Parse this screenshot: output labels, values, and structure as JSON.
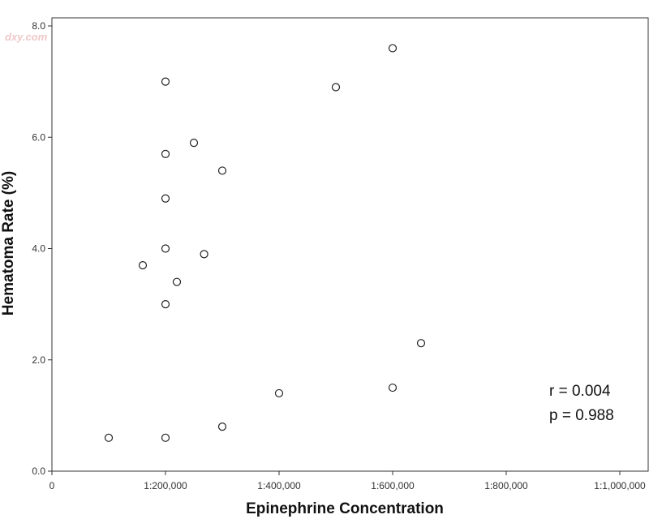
{
  "watermark": "dxy.com",
  "chart_data": {
    "type": "scatter",
    "xlabel": "Epinephrine Concentration",
    "ylabel": "Hematoma Rate (%)",
    "xlim": [
      0,
      1000000
    ],
    "ylim": [
      0,
      8
    ],
    "x_tick_values": [
      0,
      200000,
      400000,
      600000,
      800000,
      1000000
    ],
    "x_tick_labels": [
      "0",
      "1:200,000",
      "1:400,000",
      "1:600,000",
      "1:800,000",
      "1:1,000,000"
    ],
    "y_tick_values": [
      0,
      2,
      4,
      6,
      8
    ],
    "y_tick_labels": [
      "0.0",
      "2.0",
      "4.0",
      "6.0",
      "8.0"
    ],
    "grid": false,
    "points": [
      {
        "x": 100000,
        "y": 0.6
      },
      {
        "x": 160000,
        "y": 3.7
      },
      {
        "x": 200000,
        "y": 7.0
      },
      {
        "x": 200000,
        "y": 5.7
      },
      {
        "x": 200000,
        "y": 4.9
      },
      {
        "x": 200000,
        "y": 4.0
      },
      {
        "x": 200000,
        "y": 3.0
      },
      {
        "x": 200000,
        "y": 0.6
      },
      {
        "x": 220000,
        "y": 3.4
      },
      {
        "x": 250000,
        "y": 5.9
      },
      {
        "x": 268000,
        "y": 3.9
      },
      {
        "x": 300000,
        "y": 5.4
      },
      {
        "x": 300000,
        "y": 0.8
      },
      {
        "x": 400000,
        "y": 1.4
      },
      {
        "x": 500000,
        "y": 6.9
      },
      {
        "x": 600000,
        "y": 7.6
      },
      {
        "x": 600000,
        "y": 1.5
      },
      {
        "x": 650000,
        "y": 2.3
      }
    ],
    "annotations": [
      "r  = 0.004",
      "p = 0.988"
    ]
  }
}
